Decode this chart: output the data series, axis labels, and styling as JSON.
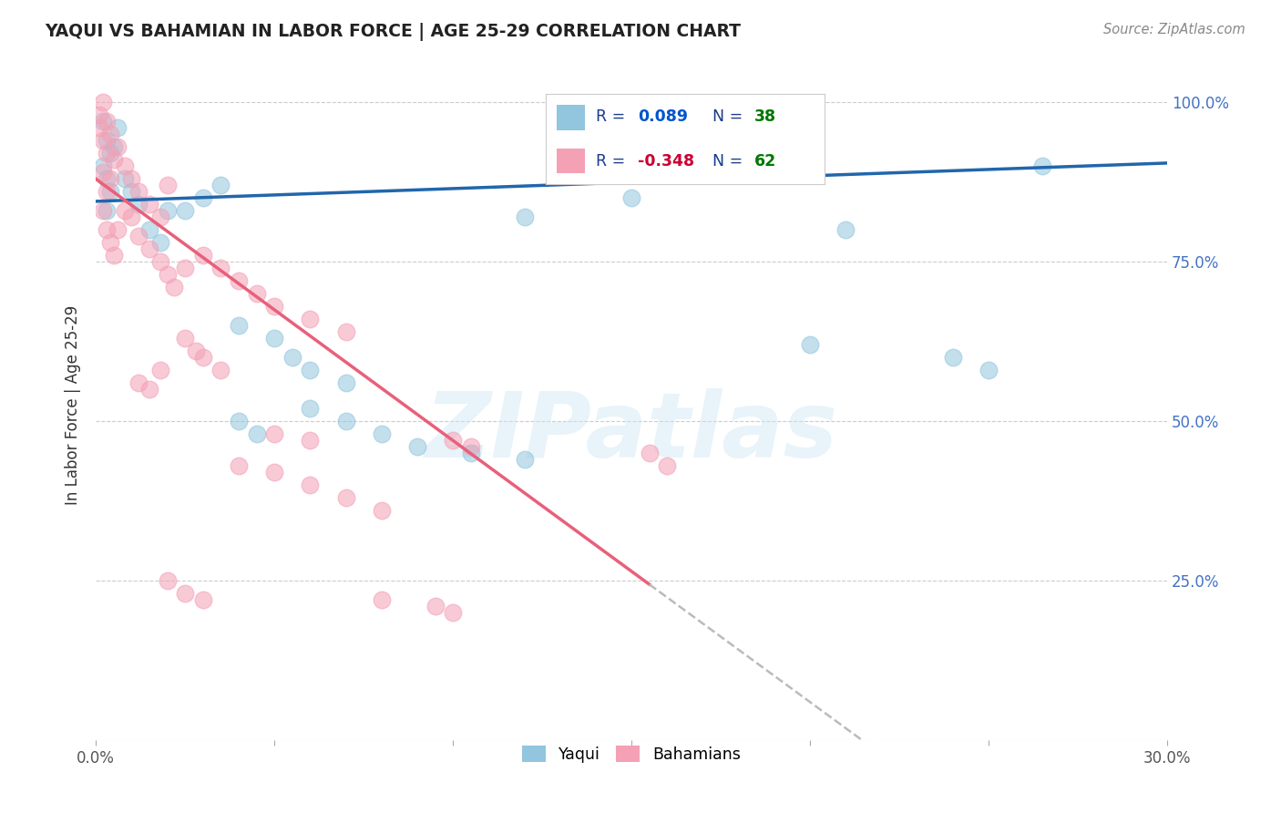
{
  "title": "YAQUI VS BAHAMIAN IN LABOR FORCE | AGE 25-29 CORRELATION CHART",
  "source": "Source: ZipAtlas.com",
  "ylabel": "In Labor Force | Age 25-29",
  "xlim": [
    0.0,
    0.3
  ],
  "ylim": [
    0.0,
    1.05
  ],
  "yticks": [
    0.0,
    0.25,
    0.5,
    0.75,
    1.0
  ],
  "right_ytick_labels": [
    "",
    "25.0%",
    "50.0%",
    "75.0%",
    "100.0%"
  ],
  "xticks": [
    0.0,
    0.05,
    0.1,
    0.15,
    0.2,
    0.25,
    0.3
  ],
  "xtick_labels": [
    "0.0%",
    "",
    "",
    "",
    "",
    "",
    "30.0%"
  ],
  "yaqui_R": 0.089,
  "yaqui_N": 38,
  "bahamian_R": -0.348,
  "bahamian_N": 62,
  "yaqui_color": "#92c5de",
  "bahamian_color": "#f4a0b5",
  "yaqui_line_color": "#2166ac",
  "bahamian_line_color": "#e8607a",
  "dashed_line_color": "#bbbbbb",
  "watermark_text": "ZIPatlas",
  "legend_label_color": "#1a3a8a",
  "legend_r_yaqui_color": "#0055cc",
  "legend_r_bahamian_color": "#cc0033",
  "legend_n_color": "#007700",
  "yaqui_x": [
    0.002,
    0.003,
    0.004,
    0.002,
    0.003,
    0.005,
    0.006,
    0.004,
    0.003,
    0.008,
    0.01,
    0.012,
    0.015,
    0.018,
    0.02,
    0.025,
    0.03,
    0.035,
    0.04,
    0.05,
    0.055,
    0.06,
    0.07,
    0.12,
    0.15,
    0.2,
    0.24,
    0.25,
    0.265,
    0.04,
    0.045,
    0.06,
    0.07,
    0.08,
    0.09,
    0.105,
    0.12,
    0.21
  ],
  "yaqui_y": [
    0.97,
    0.94,
    0.92,
    0.9,
    0.88,
    0.93,
    0.96,
    0.86,
    0.83,
    0.88,
    0.86,
    0.84,
    0.8,
    0.78,
    0.83,
    0.83,
    0.85,
    0.87,
    0.65,
    0.63,
    0.6,
    0.58,
    0.56,
    0.82,
    0.85,
    0.62,
    0.6,
    0.58,
    0.9,
    0.5,
    0.48,
    0.52,
    0.5,
    0.48,
    0.46,
    0.45,
    0.44,
    0.8
  ],
  "bahamian_x": [
    0.001,
    0.002,
    0.003,
    0.001,
    0.002,
    0.003,
    0.004,
    0.002,
    0.003,
    0.004,
    0.005,
    0.006,
    0.008,
    0.01,
    0.012,
    0.015,
    0.018,
    0.02,
    0.002,
    0.003,
    0.004,
    0.005,
    0.006,
    0.008,
    0.01,
    0.012,
    0.015,
    0.018,
    0.02,
    0.022,
    0.025,
    0.03,
    0.035,
    0.04,
    0.045,
    0.05,
    0.06,
    0.07,
    0.03,
    0.035,
    0.025,
    0.028,
    0.012,
    0.015,
    0.018,
    0.05,
    0.06,
    0.1,
    0.105,
    0.155,
    0.16,
    0.02,
    0.025,
    0.03,
    0.08,
    0.095,
    0.1,
    0.04,
    0.05,
    0.06,
    0.07,
    0.08
  ],
  "bahamian_y": [
    0.98,
    1.0,
    0.97,
    0.96,
    0.94,
    0.92,
    0.95,
    0.89,
    0.86,
    0.88,
    0.91,
    0.93,
    0.9,
    0.88,
    0.86,
    0.84,
    0.82,
    0.87,
    0.83,
    0.8,
    0.78,
    0.76,
    0.8,
    0.83,
    0.82,
    0.79,
    0.77,
    0.75,
    0.73,
    0.71,
    0.74,
    0.76,
    0.74,
    0.72,
    0.7,
    0.68,
    0.66,
    0.64,
    0.6,
    0.58,
    0.63,
    0.61,
    0.56,
    0.55,
    0.58,
    0.48,
    0.47,
    0.47,
    0.46,
    0.45,
    0.43,
    0.25,
    0.23,
    0.22,
    0.22,
    0.21,
    0.2,
    0.43,
    0.42,
    0.4,
    0.38,
    0.36
  ]
}
